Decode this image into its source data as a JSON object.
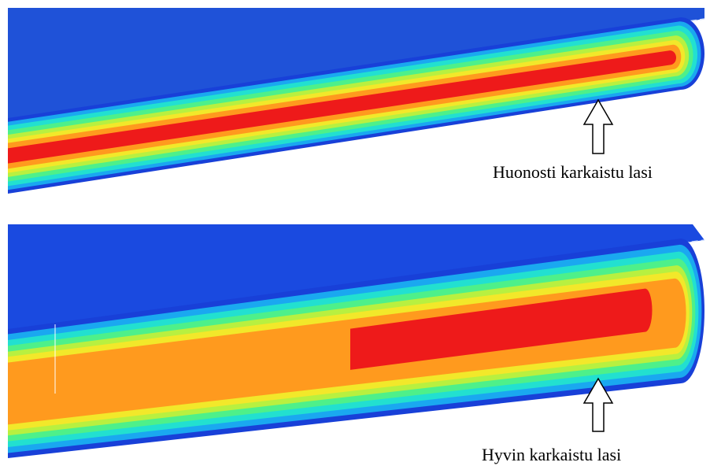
{
  "panels": [
    {
      "label": "Huonosti karkaistu lasi"
    },
    {
      "label": "Hyvin karkaistu lasi"
    }
  ]
}
